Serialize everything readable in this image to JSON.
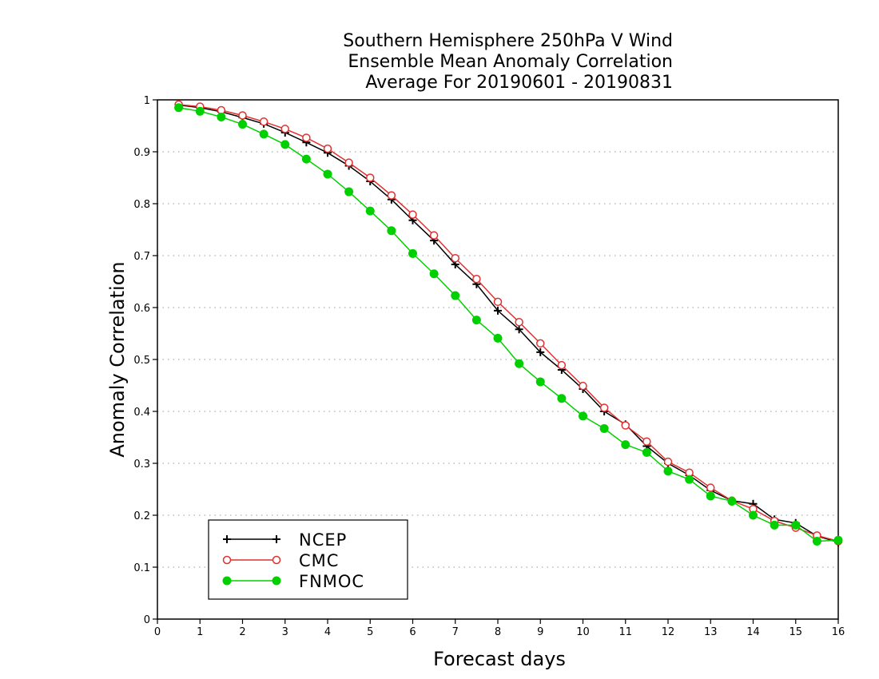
{
  "chart_data": {
    "type": "line",
    "title_lines": [
      "Southern Hemisphere 250hPa V Wind",
      "Ensemble Mean Anomaly Correlation",
      "Average For 20190601 - 20190831"
    ],
    "xlabel": "Forecast days",
    "ylabel": "Anomaly Correlation",
    "xlim": [
      0,
      16
    ],
    "ylim": [
      0,
      1
    ],
    "x_ticks": [
      0,
      1,
      2,
      3,
      4,
      5,
      6,
      7,
      8,
      9,
      10,
      11,
      12,
      13,
      14,
      15,
      16
    ],
    "y_ticks": [
      0,
      0.1,
      0.2,
      0.3,
      0.4,
      0.5,
      0.6,
      0.7,
      0.8,
      0.9,
      1
    ],
    "y_tick_labels": [
      "0",
      "0.1",
      "0.2",
      "0.3",
      "0.4",
      "0.5",
      "0.6",
      "0.7",
      "0.8",
      "0.9",
      "1"
    ],
    "grid": "dotted horizontal",
    "legend_position": "bottom-left",
    "x": [
      0.5,
      1,
      1.5,
      2,
      2.5,
      3,
      3.5,
      4,
      4.5,
      5,
      5.5,
      6,
      6.5,
      7,
      7.5,
      8,
      8.5,
      9,
      9.5,
      10,
      10.5,
      11,
      11.5,
      12,
      12.5,
      13,
      13.5,
      14,
      14.5,
      15,
      15.5,
      16
    ],
    "series": [
      {
        "name": "NCEP",
        "color": "#000000",
        "marker": "plus",
        "values": [
          0.99,
          0.985,
          0.977,
          0.966,
          0.954,
          0.937,
          0.918,
          0.898,
          0.873,
          0.843,
          0.808,
          0.768,
          0.729,
          0.683,
          0.645,
          0.594,
          0.558,
          0.514,
          0.48,
          0.443,
          0.4,
          0.375,
          0.333,
          0.3,
          0.277,
          0.248,
          0.228,
          0.222,
          0.192,
          0.185,
          0.16,
          0.148
        ]
      },
      {
        "name": "CMC",
        "color": "#e03030",
        "marker": "open-circle",
        "values": [
          0.991,
          0.987,
          0.98,
          0.97,
          0.958,
          0.944,
          0.927,
          0.906,
          0.879,
          0.85,
          0.816,
          0.779,
          0.739,
          0.695,
          0.655,
          0.611,
          0.572,
          0.531,
          0.489,
          0.449,
          0.407,
          0.373,
          0.342,
          0.303,
          0.282,
          0.253,
          0.228,
          0.212,
          0.189,
          0.176,
          0.161,
          0.15
        ]
      },
      {
        "name": "FNMOC",
        "color": "#00d000",
        "marker": "filled-circle",
        "values": [
          0.985,
          0.978,
          0.967,
          0.953,
          0.934,
          0.914,
          0.886,
          0.857,
          0.823,
          0.786,
          0.748,
          0.704,
          0.665,
          0.623,
          0.576,
          0.541,
          0.492,
          0.457,
          0.425,
          0.391,
          0.367,
          0.336,
          0.321,
          0.285,
          0.269,
          0.237,
          0.227,
          0.2,
          0.181,
          0.181,
          0.15,
          0.152
        ]
      }
    ]
  }
}
